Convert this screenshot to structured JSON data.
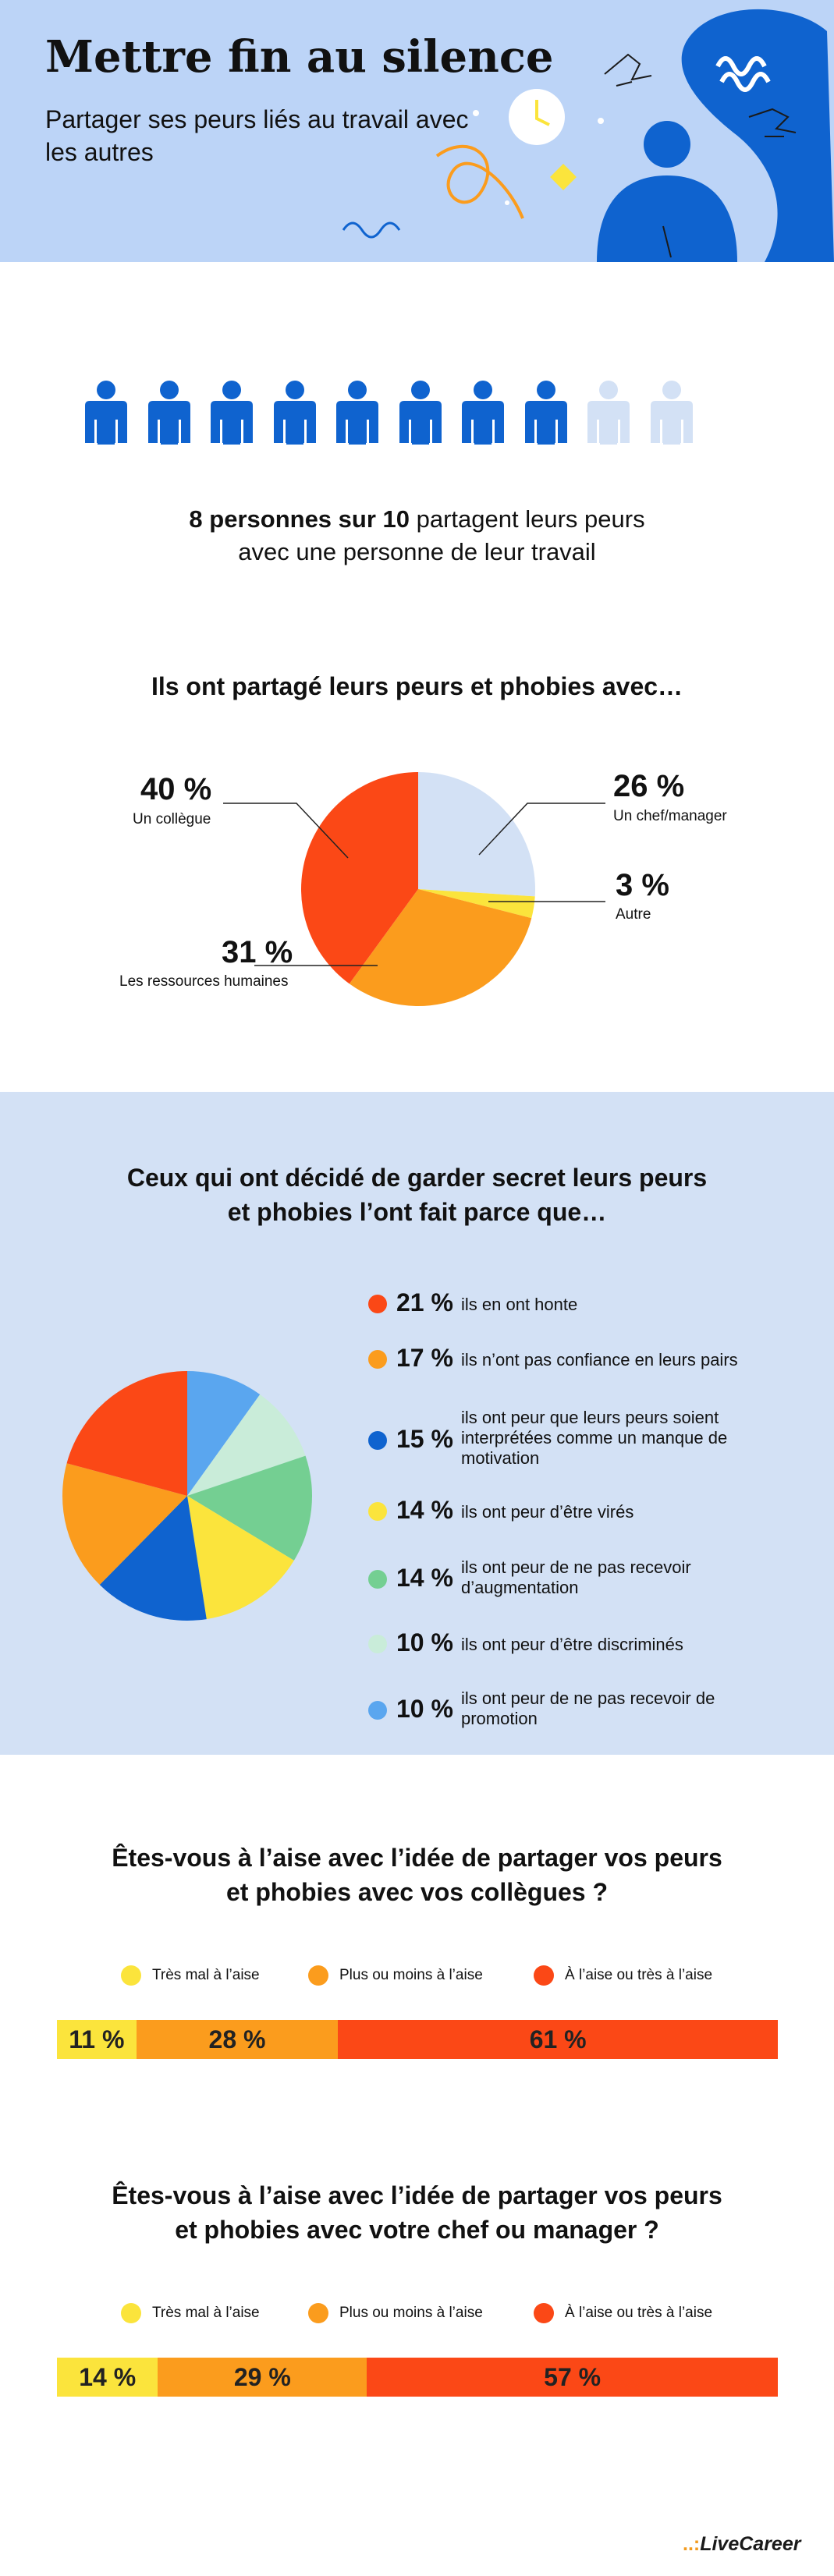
{
  "header": {
    "title": "Mettre fin au silence",
    "subtitle": "Partager ses peurs liés au travail avec les autres"
  },
  "people": {
    "filled": 8,
    "total": 10,
    "stat_bold": "8 personnes sur 10",
    "stat_rest_line1": " partagent leurs peurs",
    "stat_line2": "avec une personne de leur travail"
  },
  "pie_shared": {
    "title": "Ils ont partagé leurs peurs et phobies avec…",
    "slices": [
      {
        "pct_text": "26 %",
        "label": "Un chef/manager"
      },
      {
        "pct_text": "3 %",
        "label": "Autre"
      },
      {
        "pct_text": "31 %",
        "label": "Les ressources humaines"
      },
      {
        "pct_text": "40 %",
        "label": "Un collègue"
      }
    ]
  },
  "reasons": {
    "title_line1": "Ceux qui ont décidé de garder secret leurs peurs",
    "title_line2": "et phobies l’ont fait parce que…",
    "items": [
      {
        "pct_text": "21 %",
        "text": "ils en ont honte"
      },
      {
        "pct_text": "17 %",
        "text": "ils n’ont pas confiance en leurs pairs"
      },
      {
        "pct_text": "15 %",
        "text": "ils ont peur que leurs peurs soient interprétées comme un manque de motivation"
      },
      {
        "pct_text": "14 %",
        "text": "ils ont peur d’être virés"
      },
      {
        "pct_text": "14 %",
        "text": "ils ont peur de ne pas recevoir d’augmentation"
      },
      {
        "pct_text": "10 %",
        "text": "ils ont peur d’être discriminés"
      },
      {
        "pct_text": "10 %",
        "text": "ils ont peur de ne pas recevoir de promotion"
      }
    ]
  },
  "question1": {
    "title_line1": "Êtes-vous à l’aise avec l’idée de partager vos peurs",
    "title_line2": "et phobies avec vos collègues ?",
    "legend": [
      "Très mal à l’aise",
      "Plus ou moins à l’aise",
      "À l’aise ou très à l’aise"
    ],
    "bars": [
      "11 %",
      "28 %",
      "61 %"
    ]
  },
  "question2": {
    "title_line1": "Êtes-vous à l’aise avec l’idée de partager vos peurs",
    "title_line2": "et phobies avec votre chef ou manager ?",
    "legend": [
      "Très mal à l’aise",
      "Plus ou moins à l’aise",
      "À l’aise ou très à l’aise"
    ],
    "bars": [
      "14 %",
      "29 %",
      "57 %"
    ]
  },
  "logo": {
    "dots": "..:",
    "name": "LiveCareer"
  },
  "chart_data": [
    {
      "type": "pie",
      "title": "Ils ont partagé leurs peurs et phobies avec…",
      "categories": [
        "Un chef/manager",
        "Autre",
        "Les ressources humaines",
        "Un collègue"
      ],
      "values": [
        26,
        3,
        31,
        40
      ],
      "colors": [
        "#d3e1f5",
        "#fbe43c",
        "#fb9c1d",
        "#fb4816"
      ]
    },
    {
      "type": "pie",
      "title": "Ceux qui ont décidé de garder secret leurs peurs et phobies l’ont fait parce que…",
      "categories": [
        "ils en ont honte",
        "ils n’ont pas confiance en leurs pairs",
        "ils ont peur que leurs peurs soient interprétées comme un manque de motivation",
        "ils ont peur d’être virés",
        "ils ont peur de ne pas recevoir d’augmentation",
        "ils ont peur d’être discriminés",
        "ils ont peur de ne pas recevoir de promotion"
      ],
      "values": [
        21,
        17,
        15,
        14,
        14,
        10,
        10
      ],
      "colors": [
        "#fb4816",
        "#fb9c1d",
        "#0f63cf",
        "#fbe43c",
        "#74cf92",
        "#c9ecd9",
        "#5aa6ef"
      ]
    },
    {
      "type": "bar",
      "title": "Êtes-vous à l’aise avec l’idée de partager vos peurs et phobies avec vos collègues ?",
      "categories": [
        "Très mal à l’aise",
        "Plus ou moins à l’aise",
        "À l’aise ou très à l’aise"
      ],
      "values": [
        11,
        28,
        61
      ],
      "colors": [
        "#fbe43c",
        "#fb9c1d",
        "#fb4816"
      ]
    },
    {
      "type": "bar",
      "title": "Êtes-vous à l’aise avec l’idée de partager vos peurs et phobies avec votre chef ou manager ?",
      "categories": [
        "Très mal à l’aise",
        "Plus ou moins à l’aise",
        "À l’aise ou très à l’aise"
      ],
      "values": [
        14,
        29,
        57
      ],
      "colors": [
        "#fbe43c",
        "#fb9c1d",
        "#fb4816"
      ]
    }
  ]
}
